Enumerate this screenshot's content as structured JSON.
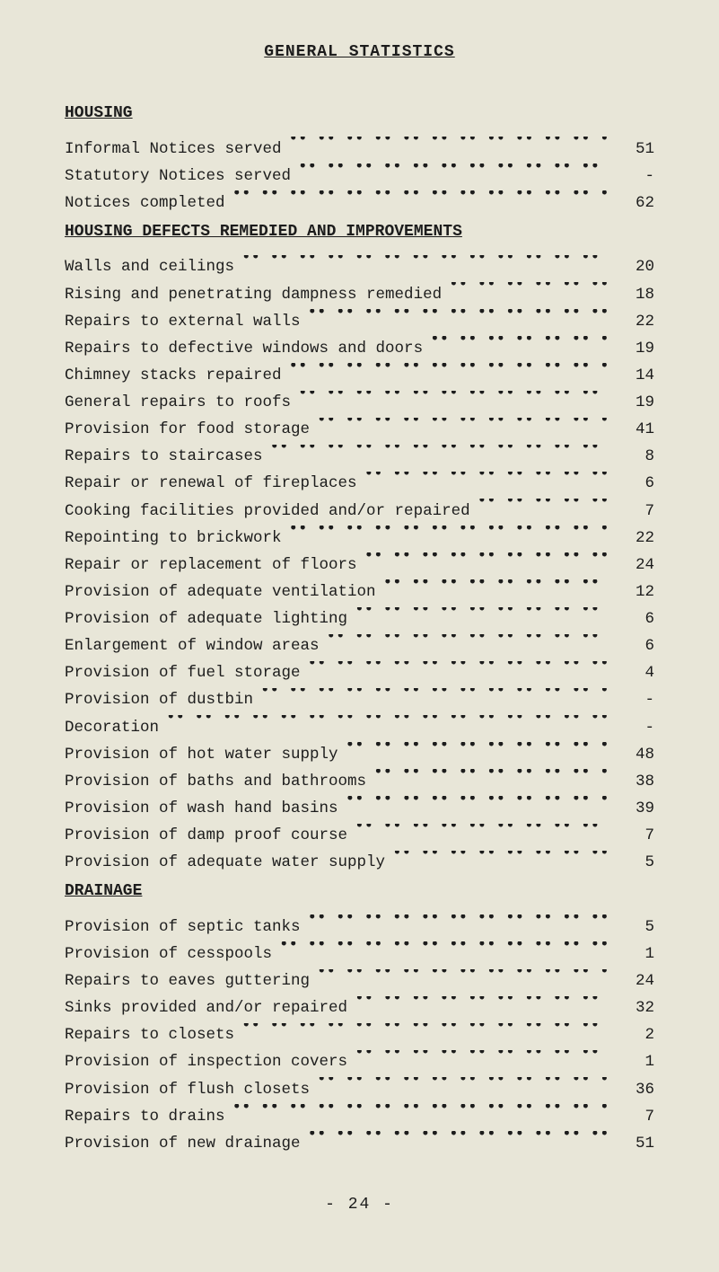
{
  "title": "GENERAL STATISTICS",
  "footer": "-  24  -",
  "colors": {
    "background": "#e8e6d8",
    "text": "#1c1c1c"
  },
  "typography": {
    "font_family": "Courier New",
    "body_fontsize_pt": 13,
    "title_fontsize_pt": 13,
    "line_height": 1.55
  },
  "sections": [
    {
      "heading": "HOUSING",
      "rows": [
        {
          "label": "Informal Notices served",
          "value": "51"
        },
        {
          "label": "Statutory Notices served",
          "value": "-"
        },
        {
          "label": "Notices completed",
          "value": "62"
        }
      ]
    },
    {
      "heading": "HOUSING DEFECTS REMEDIED AND IMPROVEMENTS",
      "rows": [
        {
          "label": "Walls and ceilings",
          "value": "20"
        },
        {
          "label": "Rising and penetrating dampness remedied",
          "value": "18"
        },
        {
          "label": "Repairs to external walls",
          "value": "22"
        },
        {
          "label": "Repairs to defective windows and doors",
          "value": "19"
        },
        {
          "label": "Chimney stacks repaired",
          "value": "14"
        },
        {
          "label": "General repairs to roofs",
          "value": "19"
        },
        {
          "label": "Provision for food storage",
          "value": "41"
        },
        {
          "label": "Repairs to staircases",
          "value": "8"
        },
        {
          "label": "Repair or renewal of fireplaces",
          "value": "6"
        },
        {
          "label": "Cooking facilities provided and/or repaired",
          "value": "7"
        },
        {
          "label": "Repointing to brickwork",
          "value": "22"
        },
        {
          "label": "Repair or replacement of floors",
          "value": "24"
        },
        {
          "label": "Provision of adequate ventilation",
          "value": "12"
        },
        {
          "label": "Provision of adequate lighting",
          "value": "6"
        },
        {
          "label": "Enlargement of window areas",
          "value": "6"
        },
        {
          "label": "Provision of fuel storage",
          "value": "4"
        },
        {
          "label": "Provision of dustbin",
          "value": "-"
        },
        {
          "label": "Decoration",
          "value": "-"
        },
        {
          "label": "Provision of hot water supply",
          "value": "48"
        },
        {
          "label": "Provision of baths and bathrooms",
          "value": "38"
        },
        {
          "label": "Provision of wash hand basins",
          "value": "39"
        },
        {
          "label": "Provision of damp proof course",
          "value": "7"
        },
        {
          "label": "Provision of adequate water supply",
          "value": "5"
        }
      ]
    },
    {
      "heading": "DRAINAGE",
      "rows": [
        {
          "label": "Provision of septic tanks",
          "value": "5"
        },
        {
          "label": "Provision of cesspools",
          "value": "1"
        },
        {
          "label": "Repairs to eaves guttering",
          "value": "24"
        },
        {
          "label": "Sinks provided and/or repaired",
          "value": "32"
        },
        {
          "label": "Repairs to closets",
          "value": "2"
        },
        {
          "label": "Provision of inspection covers",
          "value": "1"
        },
        {
          "label": "Provision of flush closets",
          "value": "36"
        },
        {
          "label": "Repairs to drains",
          "value": "7"
        },
        {
          "label": "Provision of new drainage",
          "value": "51"
        }
      ]
    }
  ]
}
